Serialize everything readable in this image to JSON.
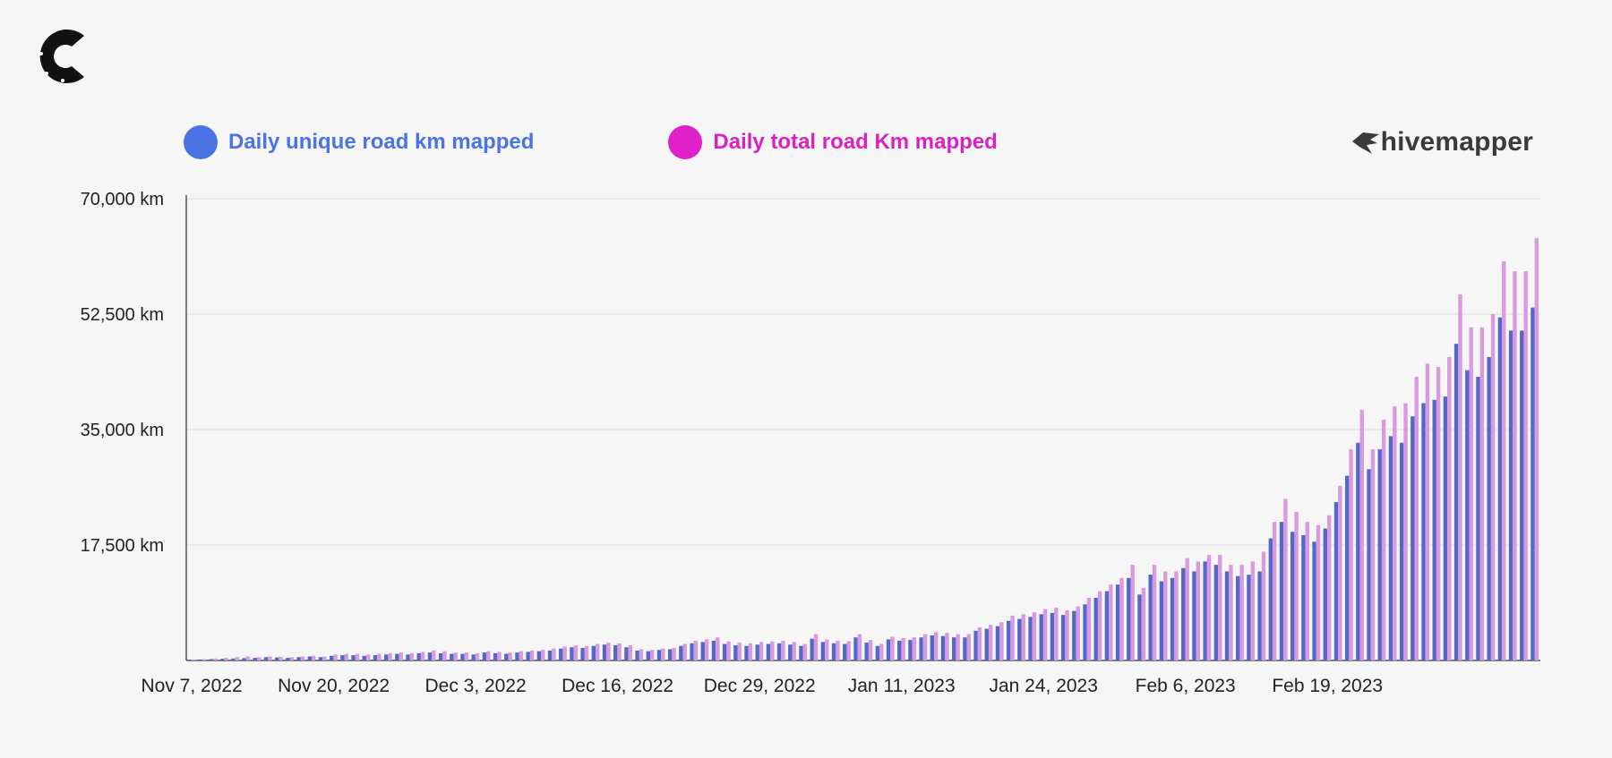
{
  "brand": {
    "name": "hivemapper",
    "logo_icon": "hivemapper-bird-icon",
    "corner_icon": "c-logo-icon"
  },
  "colors": {
    "unique": "#5468c7",
    "total": "#d99ae0",
    "unique_legend": "#4a74e6",
    "total_legend": "#e020c8"
  },
  "chart_data": {
    "type": "bar",
    "title": "",
    "xlabel": "",
    "ylabel": "",
    "ylim": [
      0,
      70000
    ],
    "grid": true,
    "legend_position": "top",
    "yticks": [
      {
        "value": 0,
        "label": ""
      },
      {
        "value": 17500,
        "label": "17,500 km"
      },
      {
        "value": 35000,
        "label": "35,000 km"
      },
      {
        "value": 52500,
        "label": "52,500 km"
      },
      {
        "value": 70000,
        "label": "70,000 km"
      }
    ],
    "xticks": [
      {
        "index": 0,
        "label": "Nov 7, 2022"
      },
      {
        "index": 13,
        "label": "Nov 20, 2022"
      },
      {
        "index": 26,
        "label": "Dec 3, 2022"
      },
      {
        "index": 39,
        "label": "Dec 16, 2022"
      },
      {
        "index": 52,
        "label": "Dec 29, 2022"
      },
      {
        "index": 65,
        "label": "Jan 11, 2023"
      },
      {
        "index": 78,
        "label": "Jan 24, 2023"
      },
      {
        "index": 91,
        "label": "Feb 6, 2023"
      },
      {
        "index": 104,
        "label": "Feb 19, 2023"
      }
    ],
    "series": [
      {
        "name": "Daily unique road km mapped",
        "values": [
          100,
          150,
          200,
          250,
          300,
          350,
          400,
          500,
          450,
          400,
          500,
          600,
          500,
          700,
          800,
          800,
          700,
          800,
          900,
          1000,
          900,
          1100,
          1200,
          1100,
          1000,
          1000,
          900,
          1200,
          1100,
          1000,
          1200,
          1300,
          1400,
          1500,
          1800,
          2000,
          1900,
          2200,
          2400,
          2300,
          2000,
          1500,
          1400,
          1600,
          1700,
          2200,
          2600,
          2800,
          3000,
          2500,
          2300,
          2200,
          2400,
          2500,
          2600,
          2400,
          2200,
          3300,
          2800,
          2600,
          2500,
          3500,
          2700,
          2200,
          3200,
          3000,
          3100,
          3500,
          3800,
          3700,
          3500,
          3500,
          4500,
          4800,
          5200,
          6000,
          6300,
          6600,
          7000,
          7200,
          6900,
          7500,
          8500,
          9500,
          10500,
          11500,
          12500,
          10000,
          13000,
          12000,
          12500,
          14000,
          13500,
          15000,
          14500,
          13500,
          12800,
          13000,
          13500,
          18500,
          21000,
          19500,
          19000,
          18000,
          20000,
          24000,
          28000,
          33000,
          29000,
          32000,
          34000,
          33000,
          37000,
          39000,
          39500,
          40000,
          48000,
          44000,
          43000,
          46000,
          52000,
          50000,
          50000,
          53500
        ],
        "color": "#5468c7"
      },
      {
        "name": "Daily total road km mapped",
        "values": [
          150,
          200,
          300,
          400,
          500,
          600,
          500,
          600,
          550,
          500,
          600,
          700,
          600,
          900,
          1000,
          1000,
          900,
          1000,
          1100,
          1200,
          1100,
          1300,
          1500,
          1400,
          1200,
          1200,
          1100,
          1400,
          1300,
          1200,
          1400,
          1500,
          1600,
          1800,
          2100,
          2300,
          2200,
          2500,
          2700,
          2600,
          2300,
          1700,
          1600,
          1800,
          1900,
          2500,
          3000,
          3200,
          3500,
          2900,
          2700,
          2600,
          2800,
          2900,
          3000,
          2800,
          2500,
          4000,
          3200,
          3000,
          2900,
          4000,
          3100,
          2500,
          3600,
          3400,
          3500,
          4000,
          4300,
          4200,
          4000,
          4000,
          5000,
          5400,
          5800,
          6800,
          7000,
          7300,
          7800,
          8000,
          7600,
          8200,
          9500,
          10500,
          11500,
          12500,
          14500,
          11000,
          14500,
          13500,
          13500,
          15500,
          15000,
          16000,
          16000,
          14500,
          14500,
          15000,
          16500,
          21000,
          24500,
          22500,
          21000,
          20500,
          22000,
          26500,
          32000,
          38000,
          32000,
          36500,
          38500,
          39000,
          43000,
          45000,
          44500,
          46000,
          55500,
          50500,
          50500,
          52500,
          60500,
          59000,
          59000,
          64000
        ],
        "color": "#d99ae0"
      }
    ]
  }
}
